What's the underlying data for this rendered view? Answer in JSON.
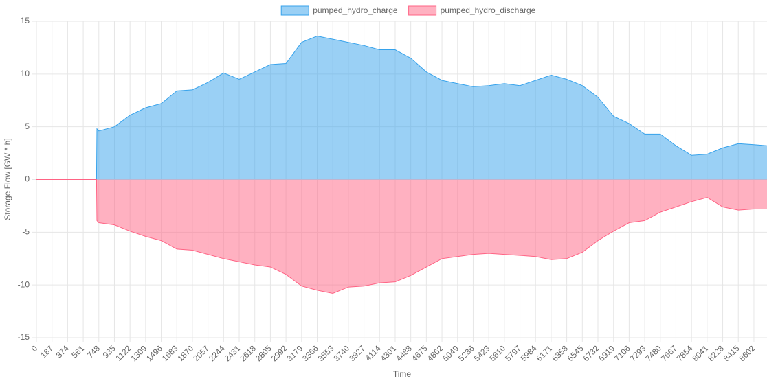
{
  "chart_data": {
    "type": "area",
    "y_label": "Storage Flow [GW * h]",
    "x_label": "Time",
    "legend": "top",
    "grid": true,
    "x": [
      0,
      187,
      374,
      561,
      720,
      725,
      748,
      935,
      1122,
      1309,
      1496,
      1683,
      1870,
      2057,
      2244,
      2431,
      2618,
      2805,
      2992,
      3179,
      3366,
      3553,
      3740,
      3927,
      4114,
      4301,
      4488,
      4675,
      4862,
      5049,
      5236,
      5423,
      5610,
      5797,
      5984,
      6171,
      6358,
      6545,
      6732,
      6919,
      7106,
      7293,
      7480,
      7667,
      7854,
      8041,
      8228,
      8415,
      8602,
      8759
    ],
    "series": [
      {
        "name": "pumped_hydro_charge",
        "color": "#36a2eb",
        "values": [
          0,
          0,
          0,
          0,
          0,
          4.8,
          4.6,
          5.0,
          6.1,
          6.8,
          7.2,
          8.4,
          8.5,
          9.2,
          10.1,
          9.5,
          10.2,
          10.9,
          11.0,
          13.0,
          13.6,
          13.3,
          13.0,
          12.7,
          12.3,
          12.3,
          11.5,
          10.2,
          9.4,
          9.1,
          8.8,
          8.9,
          9.1,
          8.9,
          9.4,
          9.9,
          9.5,
          8.9,
          7.8,
          6.0,
          5.3,
          4.3,
          4.3,
          3.2,
          2.3,
          2.4,
          3.0,
          3.4,
          3.3,
          3.2
        ]
      },
      {
        "name": "pumped_hydro_discharge",
        "color": "#ff6384",
        "values": [
          0,
          0,
          0,
          0,
          0,
          -3.9,
          -4.1,
          -4.3,
          -4.9,
          -5.4,
          -5.8,
          -6.6,
          -6.7,
          -7.1,
          -7.5,
          -7.8,
          -8.1,
          -8.3,
          -9.0,
          -10.1,
          -10.5,
          -10.8,
          -10.2,
          -10.1,
          -9.8,
          -9.7,
          -9.1,
          -8.3,
          -7.5,
          -7.3,
          -7.1,
          -7.0,
          -7.1,
          -7.2,
          -7.3,
          -7.6,
          -7.5,
          -6.9,
          -5.8,
          -4.9,
          -4.1,
          -3.9,
          -3.1,
          -2.6,
          -2.1,
          -1.7,
          -2.6,
          -2.9,
          -2.8,
          -2.8
        ]
      }
    ],
    "xlim": [
      0,
      8759
    ],
    "xticks": [
      0,
      187,
      374,
      561,
      748,
      935,
      1122,
      1309,
      1496,
      1683,
      1870,
      2057,
      2244,
      2431,
      2618,
      2805,
      2992,
      3179,
      3366,
      3553,
      3740,
      3927,
      4114,
      4301,
      4488,
      4675,
      4862,
      5049,
      5236,
      5423,
      5610,
      5797,
      5984,
      6171,
      6358,
      6545,
      6732,
      6919,
      7106,
      7293,
      7480,
      7667,
      7854,
      8041,
      8228,
      8415,
      8602
    ],
    "ylim": [
      -15,
      15
    ],
    "yticks": [
      -15,
      -10,
      -5,
      0,
      5,
      10,
      15
    ]
  }
}
